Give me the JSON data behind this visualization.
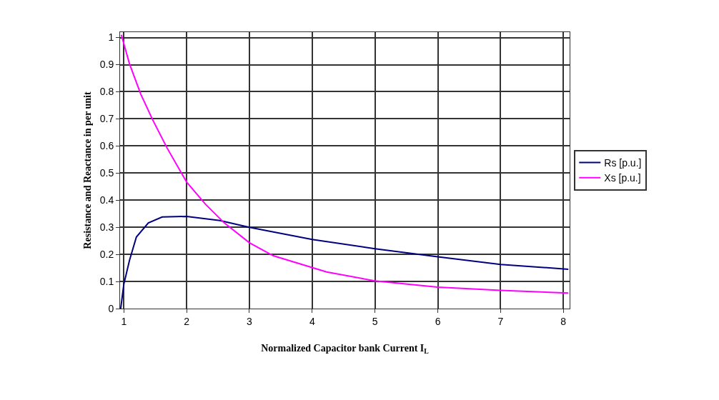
{
  "chart_data": {
    "type": "line",
    "xlabel": "Normalized Capacitor bank Current I$_{L}$",
    "ylabel": "Resistance and Reactance in per unit",
    "xlim": [
      0.94,
      8.1
    ],
    "xticks": [
      1,
      2,
      3,
      4,
      5,
      6,
      7,
      8
    ],
    "ylim": [
      0,
      1.02
    ],
    "yticks": [
      0,
      0.1,
      0.2,
      0.3,
      0.4,
      0.5,
      0.6,
      0.7,
      0.8,
      0.9,
      1
    ],
    "grid": true,
    "legend": "right",
    "marker": "none",
    "line_style": "solid",
    "series": [
      {
        "name": "Rs [p.u.]",
        "color": "#000080",
        "x": [
          0.95,
          1.0,
          1.09,
          1.2,
          1.39,
          1.61,
          2,
          2.53,
          3,
          4,
          5,
          6,
          7,
          8.08
        ],
        "values": [
          0,
          0.09,
          0.178,
          0.264,
          0.316,
          0.338,
          0.34,
          0.325,
          0.3,
          0.255,
          0.221,
          0.191,
          0.163,
          0.145
        ]
      },
      {
        "name": "Xs [p.u.]",
        "color": "#ff00ff",
        "x": [
          0.96,
          1.09,
          1.27,
          1.46,
          1.69,
          2,
          2.3,
          2.6,
          3,
          3.38,
          4.23,
          5,
          6,
          7,
          8.08
        ],
        "values": [
          1.01,
          0.903,
          0.791,
          0.696,
          0.592,
          0.467,
          0.385,
          0.316,
          0.243,
          0.195,
          0.135,
          0.102,
          0.079,
          0.067,
          0.057
        ]
      }
    ]
  }
}
